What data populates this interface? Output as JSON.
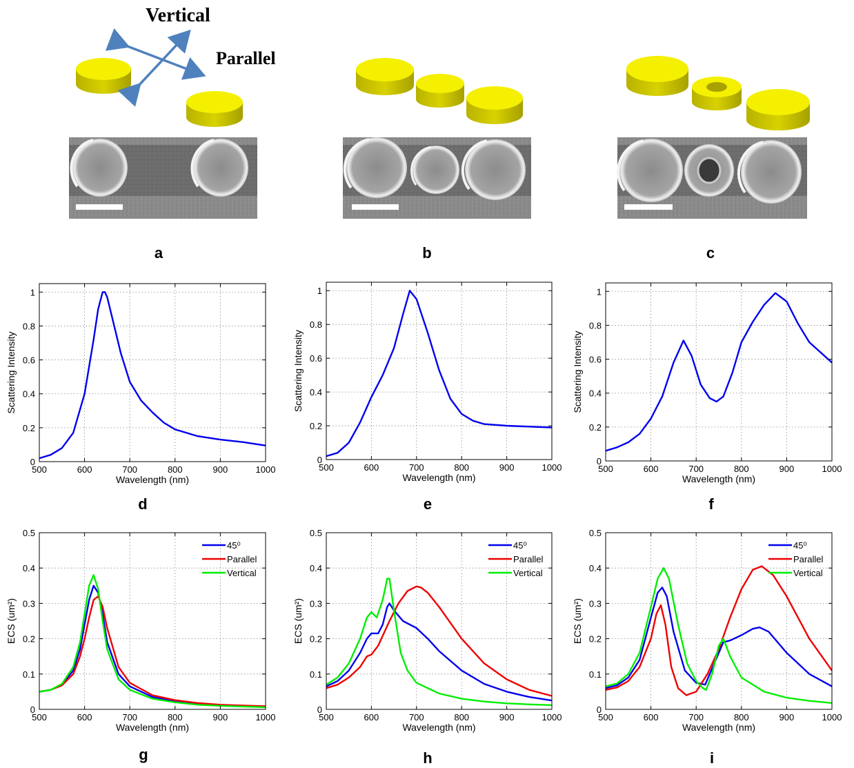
{
  "schematic": {
    "vertical_label": "Vertical",
    "parallel_label": "Parallel",
    "disk_color": "#f2ee00",
    "arrow_color": "#4f81bd"
  },
  "panel_labels": {
    "a": "a",
    "b": "b",
    "c": "c",
    "d": "d",
    "e": "e",
    "f": "f",
    "g": "g",
    "h": "h",
    "i": "i"
  },
  "colors": {
    "blue": "#0000ee",
    "red": "#ee0000",
    "green": "#00ee00"
  },
  "chart_data": [
    {
      "panel": "d",
      "type": "line",
      "xlabel": "Wavelength (nm)",
      "ylabel": "Scattering Intensity",
      "xlim": [
        500,
        1000
      ],
      "ylim": [
        0,
        1.05
      ],
      "grid": true,
      "xticks": [
        500,
        600,
        700,
        800,
        900,
        1000
      ],
      "yticks": [
        0,
        0.2,
        0.4,
        0.6,
        0.8,
        1
      ],
      "series": [
        {
          "color": "blue",
          "x": [
            500,
            525,
            550,
            575,
            600,
            620,
            630,
            640,
            645,
            650,
            660,
            680,
            700,
            725,
            750,
            775,
            800,
            850,
            900,
            950,
            1000
          ],
          "values": [
            0.02,
            0.04,
            0.08,
            0.17,
            0.4,
            0.72,
            0.9,
            1.0,
            1.0,
            0.97,
            0.86,
            0.64,
            0.47,
            0.36,
            0.29,
            0.23,
            0.19,
            0.15,
            0.13,
            0.115,
            0.095
          ]
        }
      ]
    },
    {
      "panel": "e",
      "type": "line",
      "xlabel": "Wavelength (nm)",
      "ylabel": "Scattering Intensity",
      "xlim": [
        500,
        1000
      ],
      "ylim": [
        0,
        1.05
      ],
      "grid": true,
      "xticks": [
        500,
        600,
        700,
        800,
        900,
        1000
      ],
      "yticks": [
        0,
        0.2,
        0.4,
        0.6,
        0.8,
        1
      ],
      "series": [
        {
          "color": "blue",
          "x": [
            500,
            525,
            550,
            575,
            600,
            625,
            650,
            670,
            685,
            700,
            725,
            750,
            775,
            800,
            825,
            850,
            900,
            950,
            1000
          ],
          "values": [
            0.02,
            0.04,
            0.1,
            0.22,
            0.37,
            0.5,
            0.66,
            0.86,
            1.0,
            0.95,
            0.75,
            0.53,
            0.36,
            0.27,
            0.23,
            0.21,
            0.2,
            0.195,
            0.19
          ]
        }
      ]
    },
    {
      "panel": "f",
      "type": "line",
      "xlabel": "Wavelength (nm)",
      "ylabel": "Scattering Intensity",
      "xlim": [
        500,
        1000
      ],
      "ylim": [
        0,
        1.05
      ],
      "grid": true,
      "xticks": [
        500,
        600,
        700,
        800,
        900,
        1000
      ],
      "yticks": [
        0,
        0.2,
        0.4,
        0.6,
        0.8,
        1
      ],
      "series": [
        {
          "color": "blue",
          "x": [
            500,
            525,
            550,
            575,
            600,
            625,
            650,
            672,
            690,
            710,
            730,
            745,
            760,
            780,
            800,
            825,
            850,
            875,
            900,
            925,
            950,
            975,
            1000
          ],
          "values": [
            0.06,
            0.08,
            0.11,
            0.16,
            0.25,
            0.38,
            0.58,
            0.71,
            0.62,
            0.45,
            0.37,
            0.35,
            0.38,
            0.52,
            0.7,
            0.82,
            0.92,
            0.99,
            0.94,
            0.81,
            0.7,
            0.64,
            0.58
          ]
        }
      ]
    },
    {
      "panel": "g",
      "type": "line",
      "xlabel": "Wavelength (nm)",
      "ylabel": "ECS (um²)",
      "xlim": [
        500,
        1000
      ],
      "ylim": [
        0,
        0.5
      ],
      "grid": true,
      "xticks": [
        500,
        600,
        700,
        800,
        900,
        1000
      ],
      "yticks": [
        0,
        0.1,
        0.2,
        0.3,
        0.4,
        0.5
      ],
      "legend": "top-right",
      "series": [
        {
          "name": "45⁰",
          "color": "blue",
          "x": [
            500,
            525,
            550,
            575,
            590,
            600,
            610,
            620,
            630,
            640,
            650,
            675,
            700,
            750,
            800,
            850,
            900,
            950,
            1000
          ],
          "values": [
            0.05,
            0.055,
            0.07,
            0.11,
            0.17,
            0.24,
            0.31,
            0.35,
            0.33,
            0.27,
            0.19,
            0.1,
            0.065,
            0.035,
            0.022,
            0.015,
            0.011,
            0.009,
            0.007
          ]
        },
        {
          "name": "Parallel",
          "color": "red",
          "x": [
            500,
            525,
            550,
            575,
            590,
            600,
            610,
            620,
            630,
            640,
            650,
            675,
            700,
            750,
            800,
            850,
            900,
            950,
            1000
          ],
          "values": [
            0.05,
            0.055,
            0.068,
            0.1,
            0.15,
            0.2,
            0.26,
            0.31,
            0.32,
            0.29,
            0.23,
            0.12,
            0.075,
            0.04,
            0.026,
            0.018,
            0.013,
            0.011,
            0.009
          ]
        },
        {
          "name": "Vertical",
          "color": "green",
          "x": [
            500,
            525,
            550,
            575,
            590,
            600,
            610,
            620,
            630,
            640,
            650,
            675,
            700,
            750,
            800,
            850,
            900,
            950,
            1000
          ],
          "values": [
            0.05,
            0.055,
            0.072,
            0.12,
            0.19,
            0.27,
            0.35,
            0.38,
            0.34,
            0.25,
            0.17,
            0.085,
            0.055,
            0.03,
            0.02,
            0.013,
            0.01,
            0.008,
            0.006
          ]
        }
      ]
    },
    {
      "panel": "h",
      "type": "line",
      "xlabel": "Wavelength (nm)",
      "ylabel": "ECS (um²)",
      "xlim": [
        500,
        1000
      ],
      "ylim": [
        0,
        0.5
      ],
      "grid": true,
      "xticks": [
        500,
        600,
        700,
        800,
        900,
        1000
      ],
      "yticks": [
        0,
        0.1,
        0.2,
        0.3,
        0.4,
        0.5
      ],
      "legend": "top-right",
      "series": [
        {
          "name": "45⁰",
          "color": "blue",
          "x": [
            500,
            525,
            550,
            575,
            590,
            600,
            615,
            625,
            635,
            640,
            650,
            670,
            700,
            725,
            750,
            800,
            850,
            900,
            950,
            1000
          ],
          "values": [
            0.065,
            0.08,
            0.11,
            0.16,
            0.2,
            0.215,
            0.215,
            0.24,
            0.29,
            0.3,
            0.28,
            0.25,
            0.23,
            0.2,
            0.165,
            0.11,
            0.072,
            0.05,
            0.035,
            0.025
          ]
        },
        {
          "name": "Parallel",
          "color": "red",
          "x": [
            500,
            525,
            550,
            575,
            590,
            600,
            615,
            640,
            660,
            680,
            700,
            710,
            725,
            750,
            800,
            850,
            900,
            950,
            1000
          ],
          "values": [
            0.06,
            0.07,
            0.09,
            0.12,
            0.15,
            0.155,
            0.18,
            0.25,
            0.3,
            0.335,
            0.348,
            0.345,
            0.33,
            0.29,
            0.2,
            0.13,
            0.085,
            0.055,
            0.038
          ]
        },
        {
          "name": "Vertical",
          "color": "green",
          "x": [
            500,
            525,
            550,
            575,
            590,
            600,
            612,
            625,
            635,
            640,
            650,
            665,
            680,
            700,
            750,
            800,
            850,
            900,
            950,
            1000
          ],
          "values": [
            0.07,
            0.09,
            0.13,
            0.2,
            0.26,
            0.275,
            0.26,
            0.31,
            0.37,
            0.37,
            0.28,
            0.16,
            0.11,
            0.075,
            0.045,
            0.03,
            0.022,
            0.017,
            0.014,
            0.012
          ]
        }
      ]
    },
    {
      "panel": "i",
      "type": "line",
      "xlabel": "Wavelength (nm)",
      "ylabel": "ECS (um²)",
      "xlim": [
        500,
        1000
      ],
      "ylim": [
        0,
        0.5
      ],
      "grid": true,
      "xticks": [
        500,
        600,
        700,
        800,
        900,
        1000
      ],
      "yticks": [
        0,
        0.1,
        0.2,
        0.3,
        0.4,
        0.5
      ],
      "legend": "top-right",
      "series": [
        {
          "name": "45⁰",
          "color": "blue",
          "x": [
            500,
            525,
            550,
            575,
            600,
            615,
            625,
            635,
            650,
            675,
            700,
            720,
            740,
            760,
            775,
            800,
            825,
            840,
            860,
            900,
            950,
            1000
          ],
          "values": [
            0.06,
            0.068,
            0.09,
            0.14,
            0.26,
            0.33,
            0.345,
            0.32,
            0.22,
            0.11,
            0.075,
            0.07,
            0.13,
            0.19,
            0.195,
            0.21,
            0.228,
            0.232,
            0.22,
            0.16,
            0.1,
            0.065
          ]
        },
        {
          "name": "Parallel",
          "color": "red",
          "x": [
            500,
            525,
            550,
            575,
            600,
            612,
            622,
            632,
            645,
            660,
            678,
            700,
            725,
            750,
            775,
            800,
            825,
            845,
            870,
            900,
            950,
            1000
          ],
          "values": [
            0.055,
            0.062,
            0.08,
            0.12,
            0.2,
            0.27,
            0.295,
            0.24,
            0.12,
            0.06,
            0.04,
            0.05,
            0.1,
            0.17,
            0.26,
            0.34,
            0.395,
            0.405,
            0.38,
            0.32,
            0.2,
            0.11
          ]
        },
        {
          "name": "Vertical",
          "color": "green",
          "x": [
            500,
            525,
            550,
            575,
            600,
            615,
            628,
            640,
            660,
            680,
            700,
            715,
            722,
            735,
            750,
            760,
            775,
            800,
            850,
            900,
            950,
            1000
          ],
          "values": [
            0.065,
            0.073,
            0.1,
            0.16,
            0.29,
            0.37,
            0.4,
            0.37,
            0.24,
            0.13,
            0.08,
            0.06,
            0.055,
            0.1,
            0.18,
            0.2,
            0.15,
            0.09,
            0.05,
            0.033,
            0.024,
            0.018
          ]
        }
      ]
    }
  ]
}
